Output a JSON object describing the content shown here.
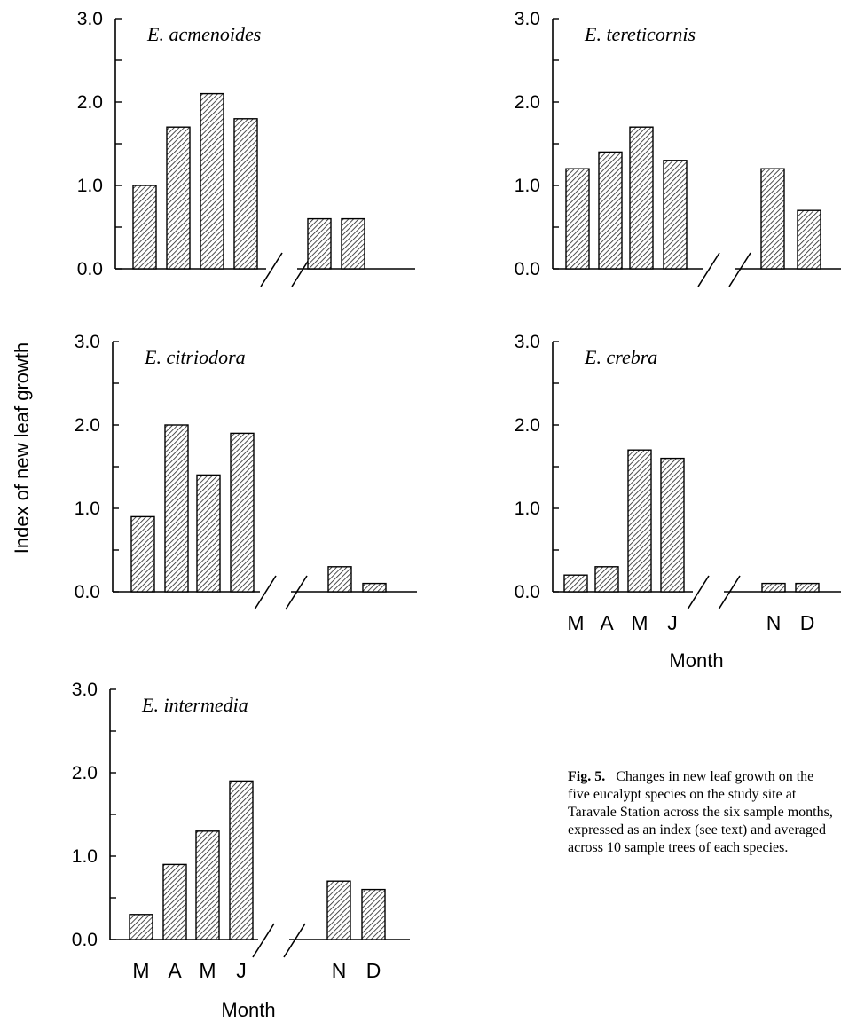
{
  "ylabel": "Index of new leaf growth",
  "xlabel": "Month",
  "months": [
    "M",
    "A",
    "M",
    "J",
    "N",
    "D"
  ],
  "y_ticks": [
    "0.0",
    "1.0",
    "2.0",
    "3.0"
  ],
  "caption": {
    "figure_number": "Fig. 5.",
    "text": "Changes in new leaf growth on the five eucalypt species on the study site at Taravale Station across the six sample months, expressed as an index (see text) and averaged across 10 sample trees of each species."
  },
  "chart_data": [
    {
      "type": "bar",
      "title": "E. acmenoides",
      "categories": [
        "M",
        "A",
        "M",
        "J",
        "N",
        "D"
      ],
      "values": [
        1.0,
        1.7,
        2.1,
        1.8,
        0.6,
        0.6
      ],
      "ylim": [
        0,
        3.0
      ],
      "axis_break": "between J and N"
    },
    {
      "type": "bar",
      "title": "E. tereticornis",
      "categories": [
        "M",
        "A",
        "M",
        "J",
        "N",
        "D"
      ],
      "values": [
        1.2,
        1.4,
        1.7,
        1.3,
        1.2,
        0.7
      ],
      "ylim": [
        0,
        3.0
      ],
      "axis_break": "between J and N"
    },
    {
      "type": "bar",
      "title": "E. citriodora",
      "categories": [
        "M",
        "A",
        "M",
        "J",
        "N",
        "D"
      ],
      "values": [
        0.9,
        2.0,
        1.4,
        1.9,
        0.3,
        0.1
      ],
      "ylim": [
        0,
        3.0
      ],
      "axis_break": "between J and N"
    },
    {
      "type": "bar",
      "title": "E. crebra",
      "categories": [
        "M",
        "A",
        "M",
        "J",
        "N",
        "D"
      ],
      "values": [
        0.2,
        0.3,
        1.7,
        1.6,
        0.1,
        0.1
      ],
      "ylim": [
        0,
        3.0
      ],
      "axis_break": "between J and N"
    },
    {
      "type": "bar",
      "title": "E. intermedia",
      "categories": [
        "M",
        "A",
        "M",
        "J",
        "N",
        "D"
      ],
      "values": [
        0.3,
        0.9,
        1.3,
        1.9,
        0.7,
        0.6
      ],
      "ylim": [
        0,
        3.0
      ],
      "axis_break": "between J and N"
    }
  ]
}
